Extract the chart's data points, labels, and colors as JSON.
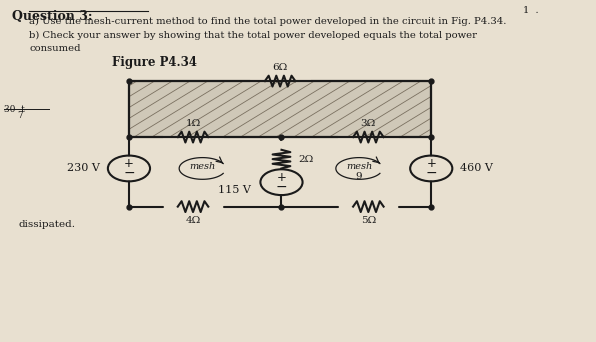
{
  "title": "Question 3:",
  "line1": "a) Use the mesh-current method to find the total power developed in the circuit in Fig. P4.34.",
  "line2": "b) Check your answer by showing that the total power developed equals the total power",
  "line3": "consumed",
  "figure_label": "Figure P4.34",
  "bottom_label": "dissipated.",
  "corner_label": "1  .",
  "resistors": {
    "R_top": "6Ω",
    "R_left_mid": "1Ω",
    "R_right_mid": "3Ω",
    "R_center": "2Ω",
    "R_bottom_left": "4Ω",
    "R_bottom_right": "5Ω"
  },
  "sources": {
    "V_left": "230 V",
    "V_center": "115 V",
    "V_right": "460 V"
  },
  "bg_color": "#e8e0d0",
  "line_color": "#1a1a1a",
  "hatch_face_color": "#cfc8b8"
}
